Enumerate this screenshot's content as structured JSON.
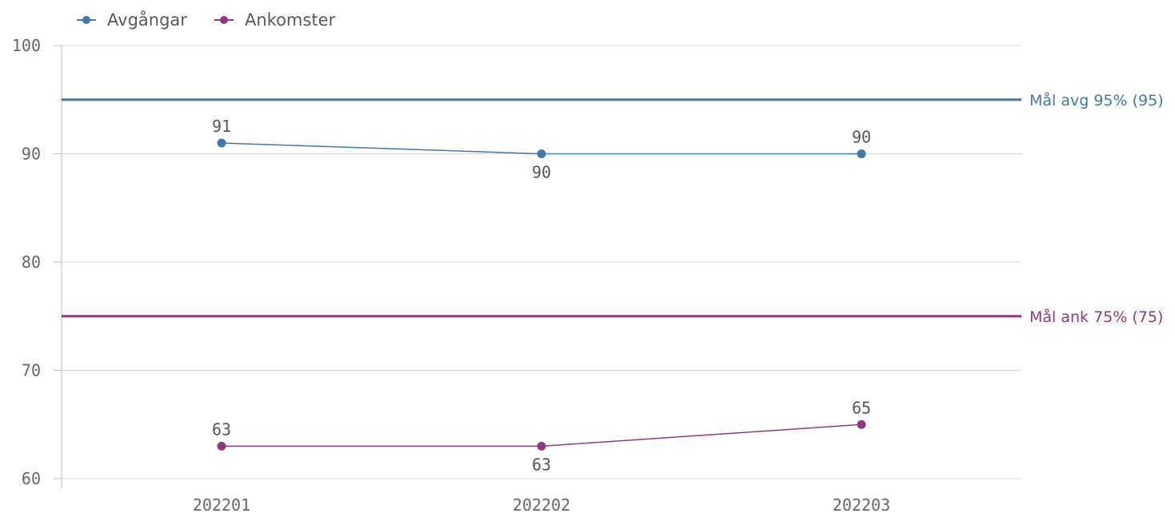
{
  "chart_data": {
    "type": "line",
    "categories": [
      "202201",
      "202202",
      "202203"
    ],
    "series": [
      {
        "name": "Avgångar",
        "values": [
          91,
          90,
          90
        ],
        "color": "#4477aa"
      },
      {
        "name": "Ankomster",
        "values": [
          63,
          63,
          65
        ],
        "color": "#8e3a7e"
      }
    ],
    "reference_lines": [
      {
        "label": "Mål avg 95% (95)",
        "value": 95,
        "color": "#4477aa"
      },
      {
        "label": "Mål ank 75% (75)",
        "value": 75,
        "color": "#8e3a7e"
      }
    ],
    "yticks": [
      100,
      90,
      80,
      70,
      60
    ],
    "ylim": [
      60,
      100
    ],
    "legend_position": "top-left",
    "grid": true,
    "title": "",
    "xlabel": "",
    "ylabel": ""
  }
}
